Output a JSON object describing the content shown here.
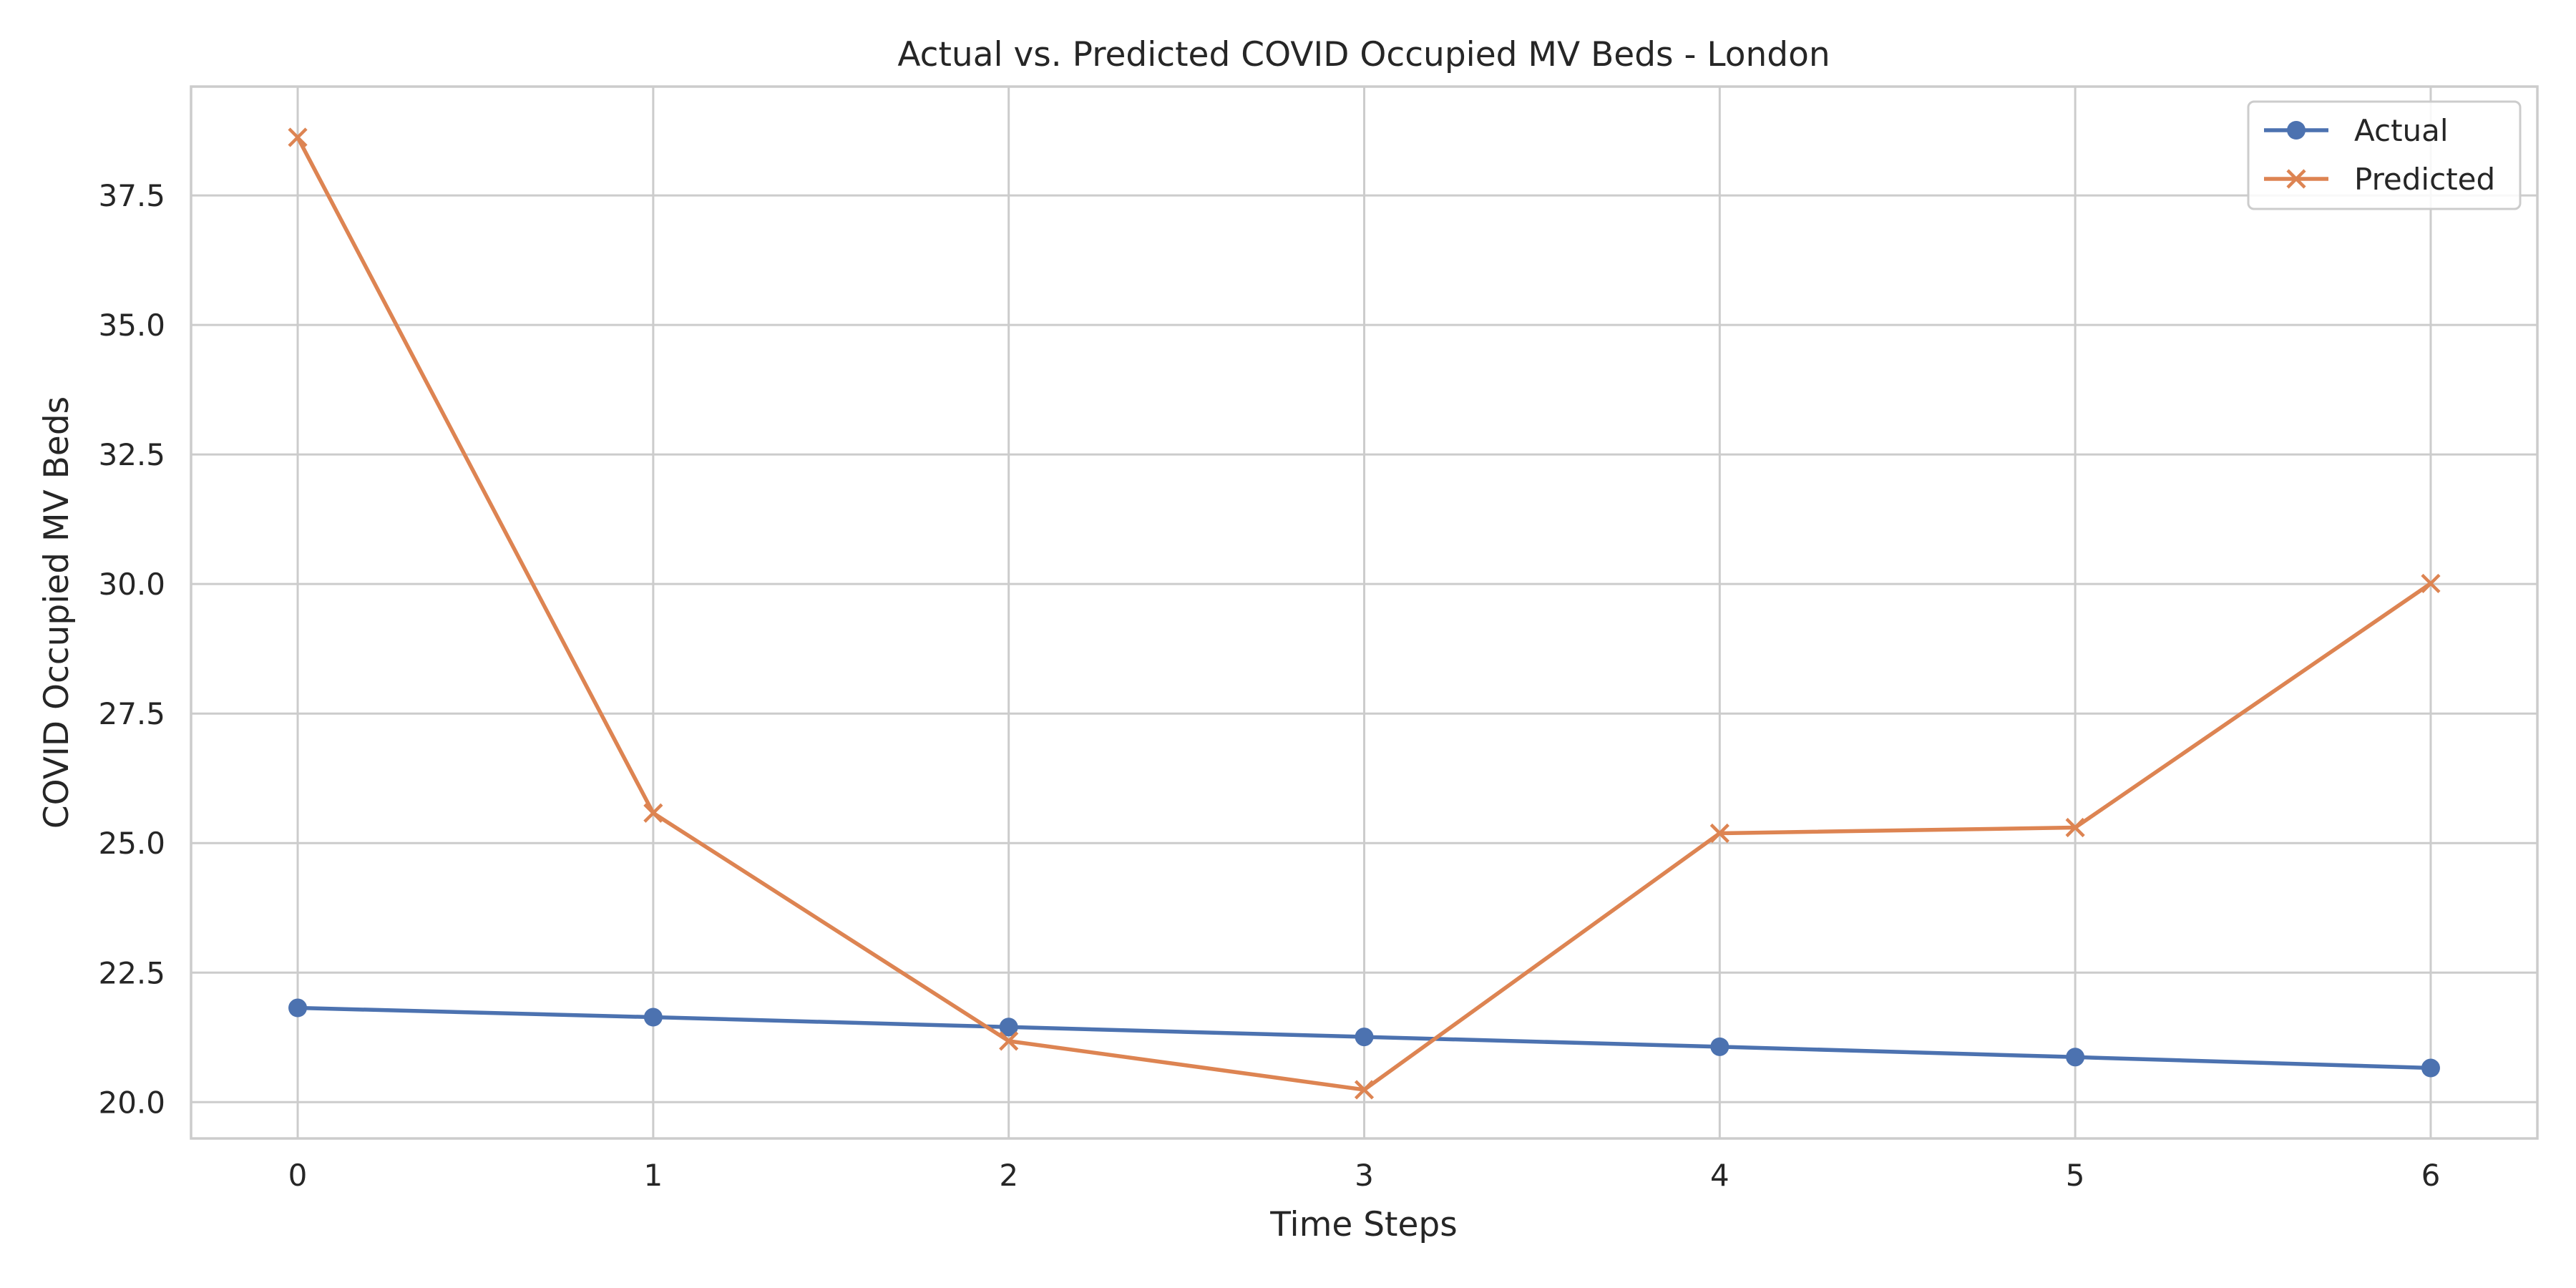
{
  "chart_data": {
    "type": "line",
    "title": "Actual vs. Predicted COVID Occupied MV Beds - London",
    "xlabel": "Time Steps",
    "ylabel": "COVID Occupied MV Beds",
    "x": [
      0,
      1,
      2,
      3,
      4,
      5,
      6
    ],
    "xticks": [
      "0",
      "1",
      "2",
      "3",
      "4",
      "5",
      "6"
    ],
    "xlim": [
      -0.3,
      6.3
    ],
    "yticks": [
      "20.0",
      "22.5",
      "25.0",
      "27.5",
      "30.0",
      "32.5",
      "35.0",
      "37.5"
    ],
    "ytick_values": [
      20.0,
      22.5,
      25.0,
      27.5,
      30.0,
      32.5,
      35.0,
      37.5
    ],
    "ylim": [
      19.3,
      39.6
    ],
    "grid": true,
    "legend_position": "top-right",
    "series": [
      {
        "name": "Actual",
        "marker": "circle",
        "color": "#4c72b0",
        "values": [
          21.82,
          21.64,
          21.45,
          21.26,
          21.07,
          20.87,
          20.66
        ]
      },
      {
        "name": "Predicted",
        "marker": "x",
        "color": "#dd8452",
        "values": [
          38.62,
          25.58,
          21.18,
          20.24,
          25.19,
          25.3,
          30.01
        ]
      }
    ]
  }
}
